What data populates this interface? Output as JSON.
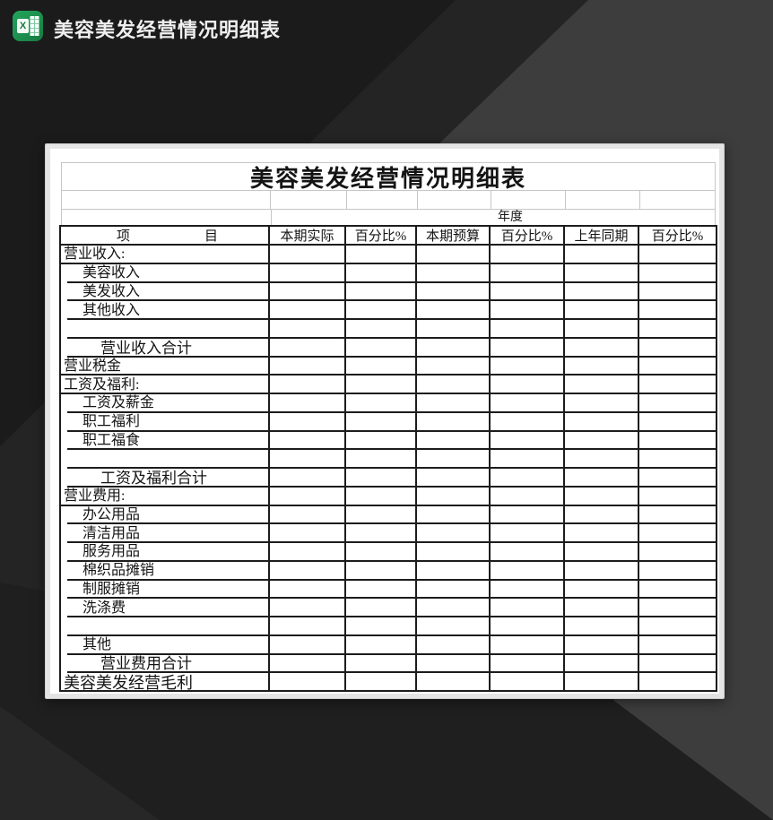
{
  "window": {
    "title": "美容美发经营情况明细表",
    "icon_letter": "X"
  },
  "colors": {
    "excel_green": "#1d9150",
    "background_dark": "#1b1b1b",
    "background_mid": "#242424",
    "background_light": "#3d3d3d",
    "grid_dark": "#1c1c1c",
    "grid_light": "#c6c6c6"
  },
  "sheet": {
    "title": "美容美发经营情况明细表",
    "year_label": "年度",
    "item_header": {
      "left": "项",
      "right": "目"
    },
    "columns": [
      "本期实际",
      "百分比%",
      "本期预算",
      "百分比%",
      "上年同期",
      "百分比%"
    ],
    "rows": [
      {
        "label": "营业收入:",
        "indent": 0,
        "blank": false,
        "sum": false
      },
      {
        "label": "美容收入",
        "indent": 1,
        "blank": false,
        "sum": false
      },
      {
        "label": "美发收入",
        "indent": 1,
        "blank": false,
        "sum": false
      },
      {
        "label": "其他收入",
        "indent": 1,
        "blank": false,
        "sum": false
      },
      {
        "label": "",
        "indent": 1,
        "blank": true,
        "sum": false
      },
      {
        "label": "营业收入合计",
        "indent": 2,
        "blank": false,
        "sum": true
      },
      {
        "label": "营业税金",
        "indent": 0,
        "blank": false,
        "sum": false
      },
      {
        "label": "工资及福利:",
        "indent": 0,
        "blank": false,
        "sum": false
      },
      {
        "label": "工资及薪金",
        "indent": 1,
        "blank": false,
        "sum": false
      },
      {
        "label": "职工福利",
        "indent": 1,
        "blank": false,
        "sum": false
      },
      {
        "label": "职工福食",
        "indent": 1,
        "blank": false,
        "sum": false
      },
      {
        "label": "",
        "indent": 1,
        "blank": true,
        "sum": false
      },
      {
        "label": "工资及福利合计",
        "indent": 2,
        "blank": false,
        "sum": true
      },
      {
        "label": "营业费用:",
        "indent": 0,
        "blank": false,
        "sum": false
      },
      {
        "label": "办公用品",
        "indent": 1,
        "blank": false,
        "sum": false
      },
      {
        "label": "清洁用品",
        "indent": 1,
        "blank": false,
        "sum": false
      },
      {
        "label": "服务用品",
        "indent": 1,
        "blank": false,
        "sum": false
      },
      {
        "label": "棉织品摊销",
        "indent": 1,
        "blank": false,
        "sum": false
      },
      {
        "label": "制服摊销",
        "indent": 1,
        "blank": false,
        "sum": false
      },
      {
        "label": "洗涤费",
        "indent": 1,
        "blank": false,
        "sum": false
      },
      {
        "label": "",
        "indent": 1,
        "blank": true,
        "sum": false
      },
      {
        "label": "其他",
        "indent": 1,
        "blank": false,
        "sum": false
      },
      {
        "label": "营业费用合计",
        "indent": 2,
        "blank": false,
        "sum": true
      },
      {
        "label": "美容美发经营毛利",
        "indent": 0,
        "blank": false,
        "sum": false
      }
    ]
  }
}
